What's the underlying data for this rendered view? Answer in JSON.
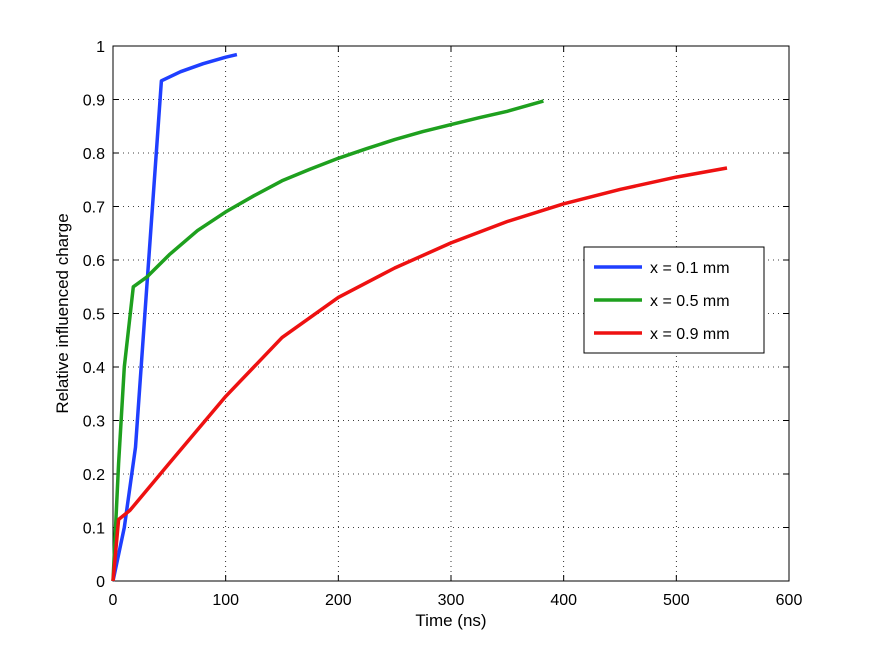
{
  "chart_data": {
    "type": "line",
    "title": "",
    "xlabel": "Time (ns)",
    "ylabel": "Relative influenced charge",
    "xlim": [
      0,
      600
    ],
    "ylim": [
      0,
      1
    ],
    "xticks": [
      0,
      100,
      200,
      300,
      400,
      500,
      600
    ],
    "yticks": [
      0,
      0.1,
      0.2,
      0.3,
      0.4,
      0.5,
      0.6,
      0.7,
      0.8,
      0.9,
      1
    ],
    "xtick_labels": [
      "0",
      "100",
      "200",
      "300",
      "400",
      "500",
      "600"
    ],
    "ytick_labels": [
      "0",
      "0.1",
      "0.2",
      "0.3",
      "0.4",
      "0.5",
      "0.6",
      "0.7",
      "0.8",
      "0.9",
      "1"
    ],
    "grid": true,
    "legend_position": "right",
    "series": [
      {
        "name": "x = 0.1 mm",
        "color": "#1f3fff",
        "x": [
          0,
          10,
          20,
          30,
          43,
          60,
          80,
          100,
          110
        ],
        "y": [
          0,
          0.1,
          0.25,
          0.55,
          0.935,
          0.952,
          0.967,
          0.979,
          0.984
        ]
      },
      {
        "name": "x = 0.5 mm",
        "color": "#1ea01e",
        "x": [
          0,
          5,
          10,
          18,
          30,
          50,
          75,
          100,
          125,
          150,
          175,
          200,
          225,
          250,
          275,
          300,
          325,
          350,
          382
        ],
        "y": [
          0,
          0.22,
          0.4,
          0.55,
          0.568,
          0.61,
          0.655,
          0.69,
          0.72,
          0.748,
          0.77,
          0.79,
          0.808,
          0.825,
          0.84,
          0.853,
          0.866,
          0.878,
          0.897
        ]
      },
      {
        "name": "x = 0.9 mm",
        "color": "#ee1111",
        "x": [
          0,
          5,
          15,
          50,
          100,
          150,
          200,
          250,
          300,
          350,
          400,
          450,
          500,
          545
        ],
        "y": [
          0,
          0.115,
          0.132,
          0.22,
          0.345,
          0.455,
          0.53,
          0.585,
          0.632,
          0.672,
          0.705,
          0.732,
          0.755,
          0.772
        ]
      }
    ]
  }
}
